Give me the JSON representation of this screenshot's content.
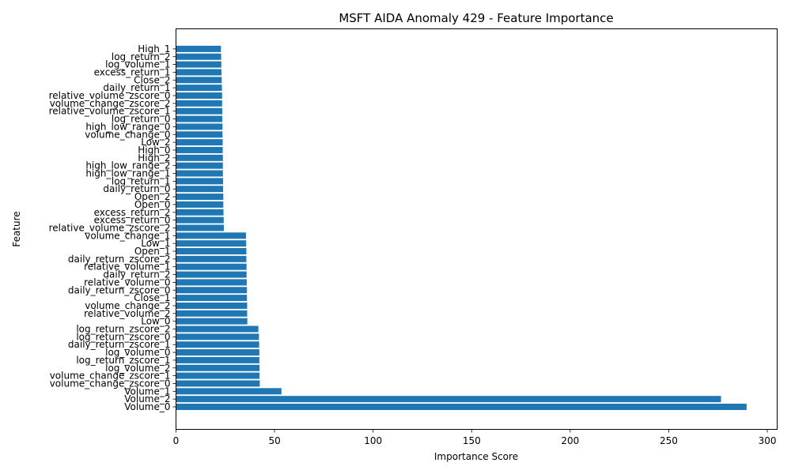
{
  "chart_data": {
    "type": "bar",
    "orientation": "horizontal",
    "title": "MSFT AIDA Anomaly 429 - Feature Importance",
    "xlabel": "Importance Score",
    "ylabel": "Feature",
    "xlim": [
      0,
      305
    ],
    "xticks": [
      0,
      50,
      100,
      150,
      200,
      250,
      300
    ],
    "grid": false,
    "bar_color": "#1f77b4",
    "categories": [
      "Volume_0",
      "Volume_2",
      "Volume_1",
      "volume_change_zscore_0",
      "volume_change_zscore_1",
      "log_volume_2",
      "log_return_zscore_1",
      "log_volume_0",
      "daily_return_zscore_1",
      "log_return_zscore_0",
      "log_return_zscore_2",
      "Low_0",
      "relative_volume_2",
      "volume_change_2",
      "Close_1",
      "daily_return_zscore_0",
      "relative_volume_0",
      "daily_return_2",
      "relative_volume_1",
      "daily_return_zscore_2",
      "Open_1",
      "Low_1",
      "volume_change_1",
      "relative_volume_zscore_2",
      "excess_return_0",
      "excess_return_2",
      "Open_0",
      "Open_2",
      "daily_return_0",
      "log_return_1",
      "high_low_range_1",
      "high_low_range_2",
      "High_2",
      "High_0",
      "Low_2",
      "volume_change_0",
      "high_low_range_0",
      "log_return_0",
      "relative_volume_zscore_1",
      "volume_change_zscore_2",
      "relative_volume_zscore_0",
      "daily_return_1",
      "Close_2",
      "excess_return_1",
      "log_volume_1",
      "log_return_2",
      "High_1"
    ],
    "values": [
      289.5,
      276.5,
      53.5,
      42.5,
      42.4,
      42.4,
      42.3,
      42.3,
      42.2,
      42.1,
      41.8,
      36.2,
      36.1,
      36.1,
      36.0,
      36.0,
      35.9,
      35.8,
      35.8,
      35.7,
      35.7,
      35.6,
      35.5,
      24.3,
      24.2,
      24.1,
      24.0,
      24.0,
      23.9,
      23.9,
      23.8,
      23.8,
      23.8,
      23.7,
      23.7,
      23.6,
      23.6,
      23.5,
      23.5,
      23.4,
      23.4,
      23.3,
      23.2,
      23.1,
      23.0,
      22.9,
      22.8
    ]
  }
}
